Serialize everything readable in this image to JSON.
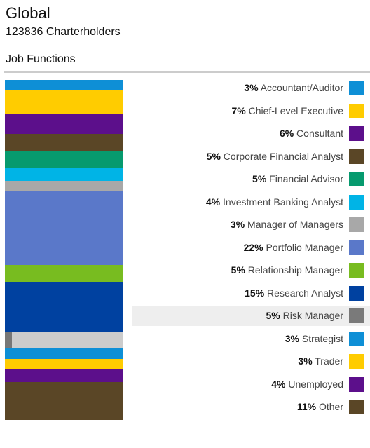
{
  "header": {
    "title": "Global",
    "subtitle": "123836 Charterholders",
    "section": "Job Functions"
  },
  "chart_data": {
    "type": "bar",
    "orientation": "stacked-vertical",
    "highlighted": "Risk Manager",
    "categories": [
      {
        "label": "Accountant/Auditor",
        "pct_label": "3%",
        "value": 3,
        "color": "#0e8fd6"
      },
      {
        "label": "Chief-Level Executive",
        "pct_label": "7%",
        "value": 7,
        "color": "#ffcc00"
      },
      {
        "label": "Consultant",
        "pct_label": "6%",
        "value": 6,
        "color": "#5c0f8b"
      },
      {
        "label": "Corporate Financial Analyst",
        "pct_label": "5%",
        "value": 5,
        "color": "#5a4626"
      },
      {
        "label": "Financial Advisor",
        "pct_label": "5%",
        "value": 5,
        "color": "#069a6e"
      },
      {
        "label": "Investment Banking Analyst",
        "pct_label": "4%",
        "value": 4,
        "color": "#00b4e6"
      },
      {
        "label": "Manager of Managers",
        "pct_label": "3%",
        "value": 3,
        "color": "#a8a8a8"
      },
      {
        "label": "Portfolio Manager",
        "pct_label": "22%",
        "value": 22,
        "color": "#5a78c9"
      },
      {
        "label": "Relationship Manager",
        "pct_label": "5%",
        "value": 5,
        "color": "#78bc20"
      },
      {
        "label": "Research Analyst",
        "pct_label": "15%",
        "value": 15,
        "color": "#0041a0"
      },
      {
        "label": "Risk Manager",
        "pct_label": "5%",
        "value": 5,
        "color": "#7a7a7a"
      },
      {
        "label": "Strategist",
        "pct_label": "3%",
        "value": 3,
        "color": "#0e8fd6"
      },
      {
        "label": "Trader",
        "pct_label": "3%",
        "value": 3,
        "color": "#ffcc00"
      },
      {
        "label": "Unemployed",
        "pct_label": "4%",
        "value": 4,
        "color": "#5c0f8b"
      },
      {
        "label": "Other",
        "pct_label": "11%",
        "value": 11,
        "color": "#5a4626"
      }
    ]
  }
}
